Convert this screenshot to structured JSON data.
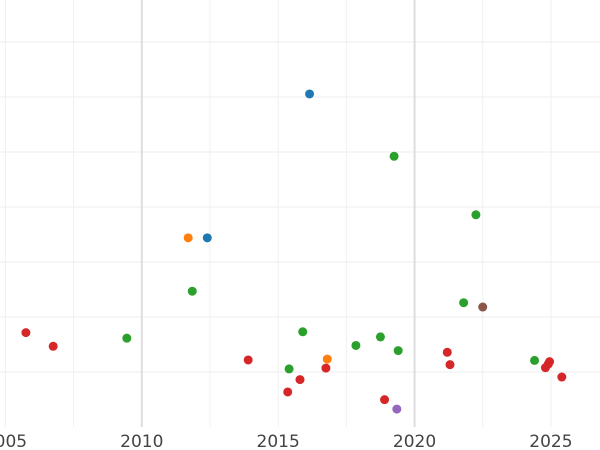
{
  "chart_data": {
    "type": "scatter",
    "title": "",
    "xlabel": "",
    "ylabel": "",
    "xlim": [
      2004.8,
      2026.8
    ],
    "ylim": [
      0,
      1
    ],
    "x_ticks": [
      2005,
      2010,
      2015,
      2020,
      2025
    ],
    "x_tick_labels": [
      "2005",
      "2010",
      "2015",
      "2020",
      "2025"
    ],
    "grid": true,
    "y_tick_labels_shown": false,
    "legend": "none",
    "colors": {
      "blue": "#1f77b4",
      "orange": "#ff7f0e",
      "green": "#2ca02c",
      "red": "#d62728",
      "purple": "#9467bd",
      "brown": "#8c564b"
    },
    "points": [
      {
        "x": 2005.75,
        "y": 0.221,
        "color": "red"
      },
      {
        "x": 2006.75,
        "y": 0.189,
        "color": "red"
      },
      {
        "x": 2009.45,
        "y": 0.208,
        "color": "green"
      },
      {
        "x": 2011.7,
        "y": 0.443,
        "color": "orange"
      },
      {
        "x": 2011.85,
        "y": 0.318,
        "color": "green"
      },
      {
        "x": 2012.4,
        "y": 0.443,
        "color": "blue"
      },
      {
        "x": 2013.9,
        "y": 0.157,
        "color": "red"
      },
      {
        "x": 2015.35,
        "y": 0.082,
        "color": "red"
      },
      {
        "x": 2015.4,
        "y": 0.136,
        "color": "green"
      },
      {
        "x": 2015.8,
        "y": 0.111,
        "color": "red"
      },
      {
        "x": 2015.9,
        "y": 0.223,
        "color": "green"
      },
      {
        "x": 2016.15,
        "y": 0.78,
        "color": "blue"
      },
      {
        "x": 2016.75,
        "y": 0.138,
        "color": "red"
      },
      {
        "x": 2016.8,
        "y": 0.159,
        "color": "orange"
      },
      {
        "x": 2017.85,
        "y": 0.191,
        "color": "green"
      },
      {
        "x": 2018.75,
        "y": 0.211,
        "color": "green"
      },
      {
        "x": 2018.9,
        "y": 0.064,
        "color": "red"
      },
      {
        "x": 2019.25,
        "y": 0.634,
        "color": "green"
      },
      {
        "x": 2019.35,
        "y": 0.042,
        "color": "purple"
      },
      {
        "x": 2019.4,
        "y": 0.179,
        "color": "green"
      },
      {
        "x": 2021.2,
        "y": 0.175,
        "color": "red"
      },
      {
        "x": 2021.3,
        "y": 0.146,
        "color": "red"
      },
      {
        "x": 2021.8,
        "y": 0.291,
        "color": "green"
      },
      {
        "x": 2022.25,
        "y": 0.497,
        "color": "green"
      },
      {
        "x": 2022.5,
        "y": 0.281,
        "color": "brown"
      },
      {
        "x": 2024.4,
        "y": 0.156,
        "color": "green"
      },
      {
        "x": 2024.8,
        "y": 0.139,
        "color": "red"
      },
      {
        "x": 2024.9,
        "y": 0.147,
        "color": "red"
      },
      {
        "x": 2024.95,
        "y": 0.153,
        "color": "red"
      },
      {
        "x": 2025.4,
        "y": 0.117,
        "color": "red"
      }
    ]
  }
}
